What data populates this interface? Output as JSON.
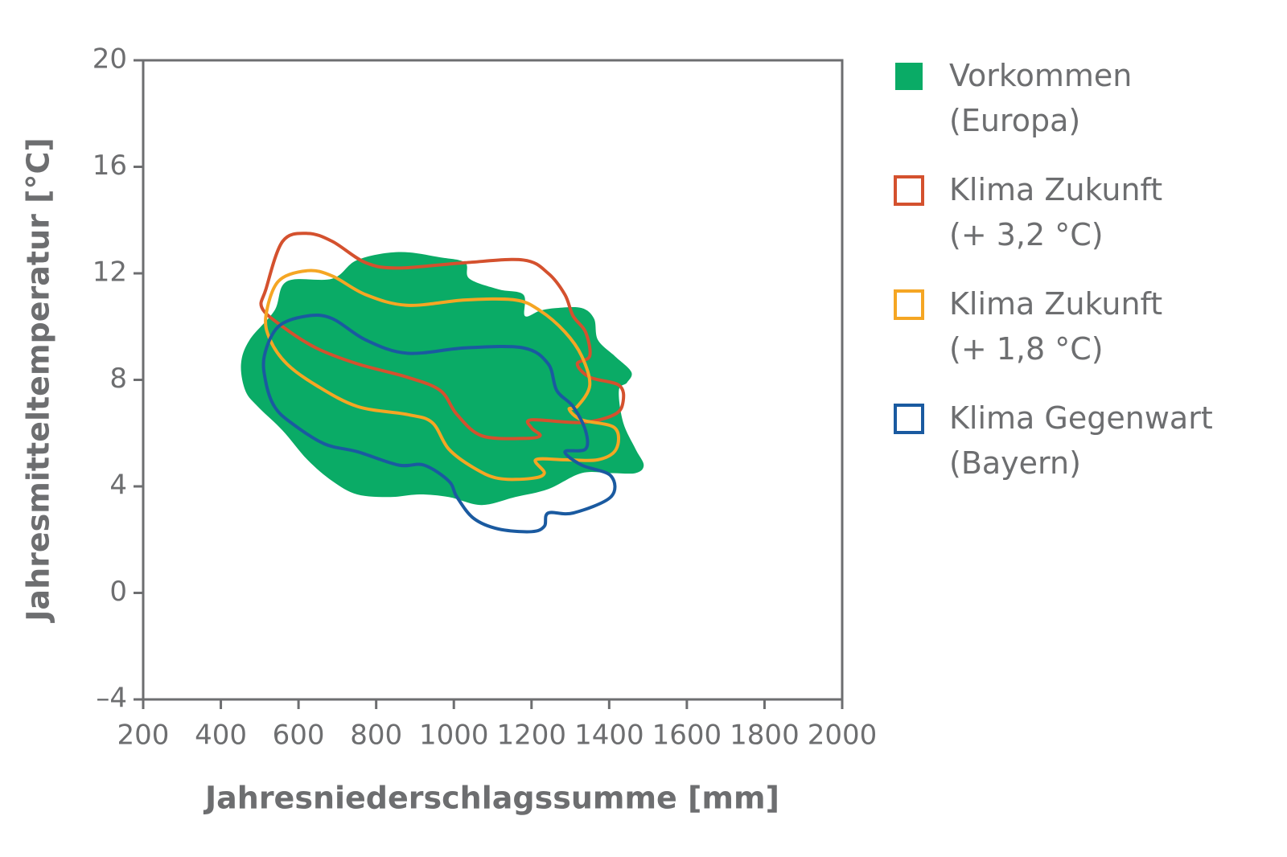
{
  "chart_data": {
    "type": "contour",
    "x_label": "Jahresniederschlagssumme [mm]",
    "y_label": "Jahresmitteltemperatur [°C]",
    "xlim": [
      200,
      2000
    ],
    "xticks": [
      200,
      400,
      600,
      800,
      1000,
      1200,
      1400,
      1600,
      1800,
      2000
    ],
    "ylim": [
      -4,
      20
    ],
    "yticks": [
      {
        "value": -4,
        "label": "–4"
      },
      0,
      4,
      8,
      12,
      16,
      20
    ],
    "legend": "right",
    "series": [
      {
        "name": "Vorkommen (Europa)",
        "color": "#0aab66",
        "fill": true,
        "x": [
          452,
          474,
          538,
          570,
          687,
          751,
          858,
          965,
          1029,
          1040,
          1115,
          1179,
          1183,
          1222,
          1265,
          1329,
          1361,
          1371,
          1414,
          1457,
          1446,
          1425,
          1436,
          1468,
          1489,
          1468,
          1404,
          1329,
          1243,
          1158,
          1072,
          987,
          912,
          837,
          751,
          687,
          623,
          559,
          495,
          463
        ],
        "y": [
          8.6,
          9.5,
          10.6,
          11.7,
          11.8,
          12.5,
          12.8,
          12.6,
          12.4,
          11.8,
          11.4,
          11.2,
          10.4,
          10.6,
          10.7,
          10.7,
          10.3,
          9.5,
          8.9,
          8.3,
          7.9,
          7.6,
          6.4,
          5.4,
          4.8,
          4.5,
          4.5,
          4.5,
          3.9,
          3.6,
          3.3,
          3.6,
          3.7,
          3.6,
          3.7,
          4.2,
          5.0,
          6.1,
          7.0,
          7.6
        ]
      },
      {
        "name": "Klima Zukunft (+ 3,2 °C)",
        "color": "#d4512e",
        "fill": false,
        "x": [
          516,
          559,
          623,
          687,
          773,
          858,
          1029,
          1179,
          1243,
          1286,
          1307,
          1339,
          1350,
          1318,
          1350,
          1425,
          1436,
          1414,
          1329,
          1200,
          1200,
          1222,
          1179,
          1072,
          1008,
          965,
          880,
          752,
          645,
          559,
          506
        ],
        "y": [
          11.4,
          13.2,
          13.5,
          13.2,
          12.4,
          12.2,
          12.4,
          12.5,
          12.0,
          11.2,
          10.4,
          9.8,
          8.9,
          8.6,
          8.1,
          7.8,
          7.2,
          6.7,
          6.4,
          6.5,
          6.2,
          5.9,
          5.8,
          5.9,
          6.7,
          7.6,
          8.1,
          8.6,
          9.2,
          10.0,
          10.7
        ]
      },
      {
        "name": "Klima Zukunft (+ 1,8 °C)",
        "color": "#f5a623",
        "fill": false,
        "x": [
          516,
          548,
          623,
          687,
          773,
          880,
          1029,
          1158,
          1222,
          1286,
          1329,
          1350,
          1318,
          1297,
          1329,
          1414,
          1418,
          1371,
          1286,
          1211,
          1233,
          1200,
          1115,
          1051,
          987,
          944,
          880,
          752,
          645,
          570,
          527
        ],
        "y": [
          10.4,
          11.7,
          12.1,
          11.9,
          11.2,
          10.8,
          11.0,
          11.0,
          10.6,
          9.8,
          8.9,
          7.8,
          7.0,
          6.9,
          6.5,
          6.2,
          5.4,
          5.0,
          5.0,
          5.0,
          4.5,
          4.3,
          4.3,
          4.7,
          5.4,
          6.4,
          6.7,
          7.0,
          7.8,
          8.6,
          9.5
        ]
      },
      {
        "name": "Klima Gegenwart (Bayern)",
        "color": "#1a5aa0",
        "fill": false,
        "x": [
          512,
          548,
          623,
          687,
          773,
          880,
          1029,
          1179,
          1243,
          1265,
          1307,
          1339,
          1339,
          1286,
          1329,
          1404,
          1404,
          1307,
          1243,
          1233,
          1200,
          1115,
          1051,
          1008,
          987,
          923,
          858,
          752,
          666,
          580,
          538,
          516
        ],
        "y": [
          8.9,
          10.0,
          10.4,
          10.3,
          9.5,
          9.0,
          9.2,
          9.2,
          8.6,
          7.6,
          7.0,
          6.1,
          5.4,
          5.3,
          4.8,
          4.4,
          3.6,
          3.0,
          3.0,
          2.5,
          2.3,
          2.4,
          2.8,
          3.6,
          4.2,
          4.8,
          4.8,
          5.3,
          5.6,
          6.4,
          7.0,
          7.9
        ]
      }
    ]
  }
}
